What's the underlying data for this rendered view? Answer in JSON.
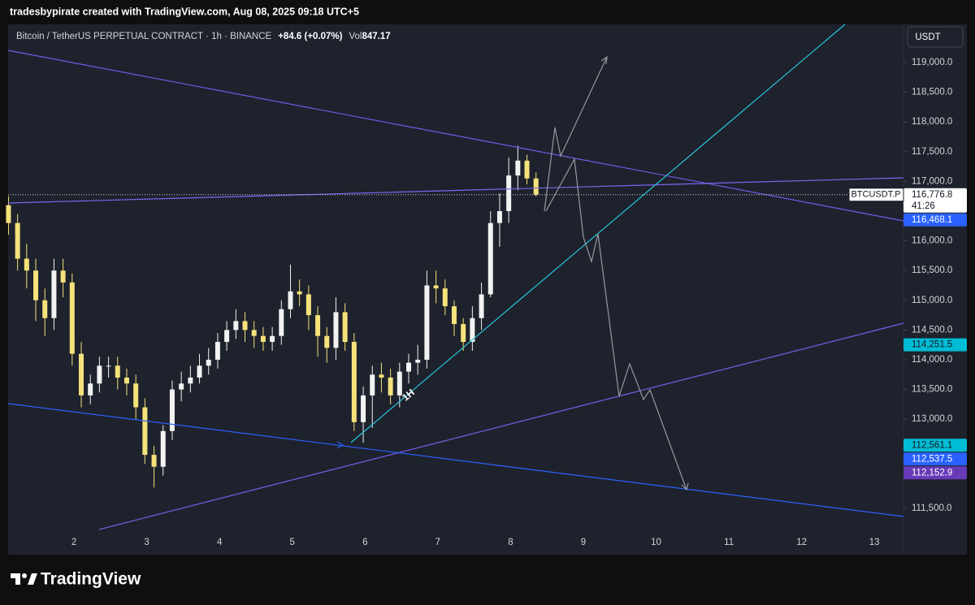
{
  "chart_data": {
    "type": "candlestick",
    "watermark": "tradesbypirate created with TradingView.com, Aug 08, 2025 09:18 UTC+5",
    "title": "Bitcoin / TetherUS PERPETUAL CONTRACT · 1h · BINANCE",
    "change": "+84.6 (+0.07%)",
    "volume_label": "Vol",
    "volume": 847.17,
    "currency": "USDT",
    "annotation": "1H",
    "brand": "TradingView",
    "symbol_label": "BTCUSDT.P",
    "countdown": "41:26",
    "up_color": "#f2f2f2",
    "down_color": "#f5e27a",
    "x": [
      1.1,
      1.225,
      1.35,
      1.475,
      1.6,
      1.725,
      1.85,
      1.975,
      2.1,
      2.225,
      2.35,
      2.475,
      2.6,
      2.725,
      2.85,
      2.975,
      3.1,
      3.225,
      3.35,
      3.475,
      3.6,
      3.725,
      3.85,
      3.975,
      4.1,
      4.225,
      4.35,
      4.475,
      4.6,
      4.725,
      4.85,
      4.975,
      5.1,
      5.225,
      5.35,
      5.475,
      5.6,
      5.725,
      5.85,
      5.975,
      6.1,
      6.225,
      6.35,
      6.475,
      6.6,
      6.725,
      6.85,
      6.975,
      7.1,
      7.225,
      7.35,
      7.475,
      7.6,
      7.725,
      7.85,
      7.975,
      8.1,
      8.225,
      8.35
    ],
    "open": [
      116600,
      116300,
      115700,
      115500,
      115000,
      114700,
      115500,
      115300,
      114100,
      113400,
      113600,
      113900,
      113900,
      113700,
      113600,
      113200,
      112400,
      112200,
      112800,
      113500,
      113600,
      113700,
      113900,
      114000,
      114300,
      114500,
      114650,
      114500,
      114400,
      114300,
      114400,
      114850,
      115150,
      115100,
      114750,
      114400,
      114200,
      114800,
      114300,
      112950,
      113400,
      113750,
      113700,
      113400,
      113800,
      113950,
      114000,
      115250,
      115200,
      114900,
      114600,
      114300,
      114700,
      115100,
      116300,
      116500,
      117100,
      117350,
      117050
    ],
    "high": [
      116750,
      116450,
      115950,
      115700,
      115200,
      115700,
      115700,
      115450,
      114300,
      113750,
      114050,
      114050,
      114050,
      113850,
      113750,
      113350,
      112550,
      112900,
      113650,
      113800,
      113900,
      114100,
      114200,
      114450,
      114650,
      114850,
      114800,
      114650,
      114550,
      114550,
      115000,
      115600,
      115350,
      115250,
      114900,
      114550,
      115050,
      114950,
      114450,
      113550,
      113900,
      113950,
      113850,
      113950,
      114100,
      114250,
      115500,
      115500,
      115350,
      115000,
      114700,
      114900,
      115300,
      116500,
      116800,
      117400,
      117600,
      117450,
      117150
    ],
    "low": [
      116100,
      115500,
      115200,
      114650,
      114400,
      114500,
      115050,
      113900,
      113200,
      113250,
      113450,
      113700,
      113500,
      113400,
      113000,
      112250,
      111850,
      112050,
      112650,
      113300,
      113450,
      113600,
      113750,
      113850,
      114150,
      114350,
      114300,
      114200,
      114150,
      114150,
      114250,
      114700,
      114900,
      114500,
      114050,
      113950,
      114000,
      114150,
      112800,
      112600,
      112850,
      113450,
      113250,
      113200,
      113600,
      113750,
      113850,
      114950,
      114750,
      114400,
      114150,
      114150,
      114500,
      115050,
      115900,
      116300,
      116850,
      116950,
      116750
    ],
    "close": [
      116300,
      115700,
      115500,
      115000,
      114700,
      115500,
      115300,
      114100,
      113400,
      113600,
      113900,
      113900,
      113700,
      113600,
      113200,
      112400,
      112200,
      112800,
      113500,
      113600,
      113700,
      113900,
      114000,
      114300,
      114500,
      114650,
      114500,
      114400,
      114300,
      114400,
      114850,
      115150,
      115100,
      114750,
      114400,
      114200,
      114800,
      114300,
      112950,
      113400,
      113750,
      113700,
      113400,
      113800,
      113950,
      114000,
      115250,
      115200,
      114900,
      114600,
      114300,
      114700,
      115100,
      116300,
      116500,
      117100,
      117350,
      117050,
      116776.8
    ],
    "xlim": [
      1.095,
      13.4
    ],
    "xticks": [
      2,
      3,
      4,
      5,
      6,
      7,
      8,
      9,
      10,
      11,
      12,
      13
    ],
    "ylim": [
      110721,
      119642
    ],
    "yticks": [
      {
        "value": 111500,
        "label": "111,500.0"
      },
      {
        "value": 113000,
        "label": "113,000.0"
      },
      {
        "value": 113500,
        "label": "113,500.0"
      },
      {
        "value": 114000,
        "label": "114,000.0"
      },
      {
        "value": 114500,
        "label": "114,500.0"
      },
      {
        "value": 115000,
        "label": "115,000.0"
      },
      {
        "value": 115500,
        "label": "115,500.0"
      },
      {
        "value": 116000,
        "label": "116,000.0"
      },
      {
        "value": 117000,
        "label": "117,000.0"
      },
      {
        "value": 117500,
        "label": "117,500.0"
      },
      {
        "value": 118000,
        "label": "118,000.0"
      },
      {
        "value": 118500,
        "label": "118,500.0"
      },
      {
        "value": 119000,
        "label": "119,000.0"
      }
    ],
    "price_labels": [
      {
        "value": 116776.8,
        "label": "116,776.8",
        "color": "#ffffff",
        "text_color": "#131722"
      },
      {
        "value": 116468.1,
        "label": "116,468.1",
        "color": "#2962ff",
        "text_color": "#ffffff"
      },
      {
        "value": 114251.5,
        "label": "114,251.5",
        "color": "#00bcd4",
        "text_color": "#131722"
      },
      {
        "value": 112561.1,
        "label": "112,561.1",
        "color": "#00bcd4",
        "text_color": "#131722"
      },
      {
        "value": 112537.5,
        "label": "112,537.5",
        "color": "#2962ff",
        "text_color": "#ffffff"
      },
      {
        "value": 112152.9,
        "label": "112,152.9",
        "color": "#673ab7",
        "text_color": "#ffffff"
      }
    ]
  }
}
